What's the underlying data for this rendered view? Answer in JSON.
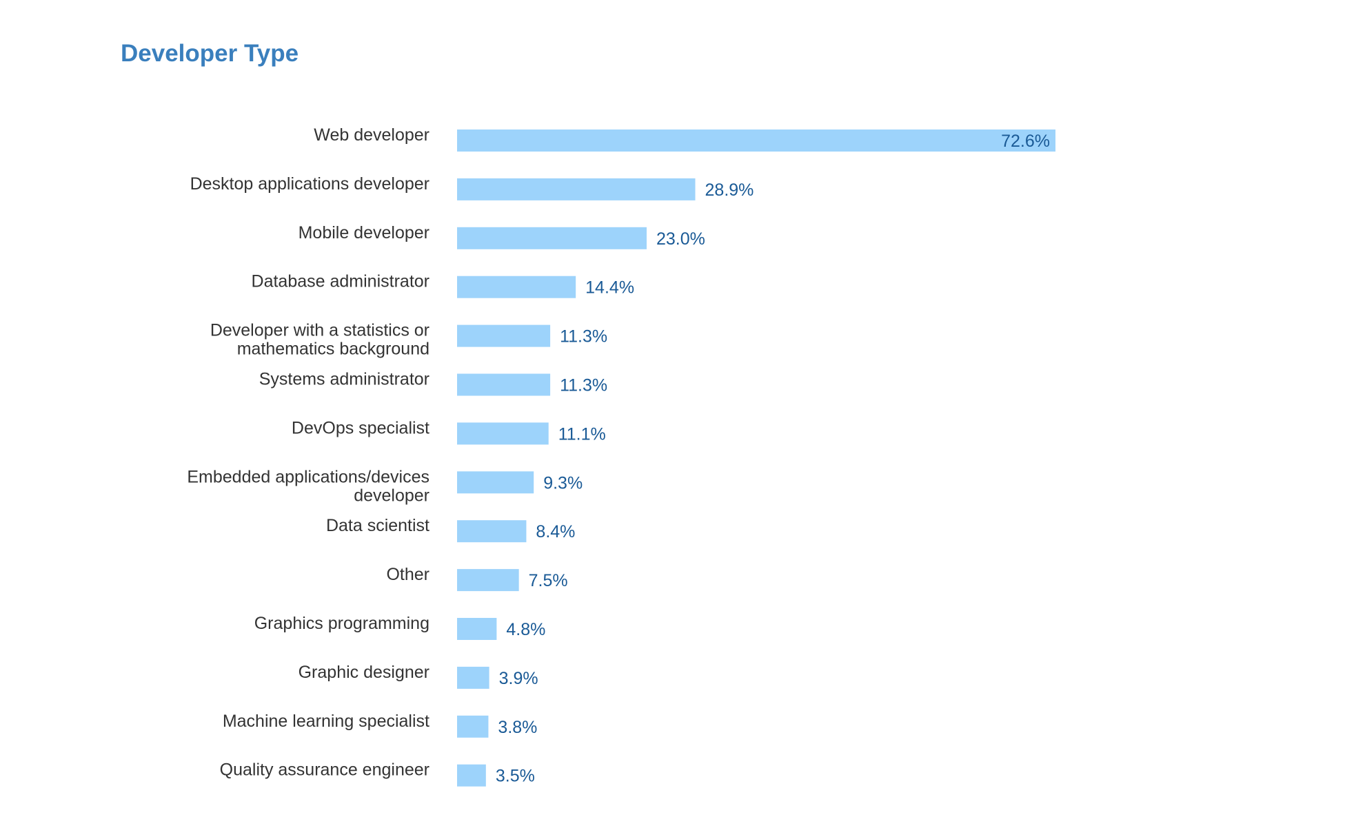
{
  "chart_data": {
    "type": "bar",
    "orientation": "horizontal",
    "title": "Developer Type",
    "xlabel": "",
    "ylabel": "",
    "grid": false,
    "legend": "none",
    "xlim": [
      0,
      100
    ],
    "categories": [
      [
        "Web developer"
      ],
      [
        "Desktop applications developer"
      ],
      [
        "Mobile developer"
      ],
      [
        "Database administrator"
      ],
      [
        "Developer with a statistics or",
        "mathematics background"
      ],
      [
        "Systems administrator"
      ],
      [
        "DevOps specialist"
      ],
      [
        "Embedded applications/devices",
        "developer"
      ],
      [
        "Data scientist"
      ],
      [
        "Other"
      ],
      [
        "Graphics programming"
      ],
      [
        "Graphic designer"
      ],
      [
        "Machine learning specialist"
      ],
      [
        "Quality assurance engineer"
      ]
    ],
    "values": [
      72.6,
      28.9,
      23.0,
      14.4,
      11.3,
      11.3,
      11.1,
      9.3,
      8.4,
      7.5,
      4.8,
      3.9,
      3.8,
      3.5
    ],
    "value_labels": [
      "72.6%",
      "28.9%",
      "23.0%",
      "14.4%",
      "11.3%",
      "11.3%",
      "11.1%",
      "9.3%",
      "8.4%",
      "7.5%",
      "4.8%",
      "3.9%",
      "3.8%",
      "3.5%"
    ],
    "colors": {
      "bar": "#9dd3fb",
      "title": "#3a7fbd",
      "value_label": "#1a5a96",
      "category_label": "#333333"
    }
  }
}
